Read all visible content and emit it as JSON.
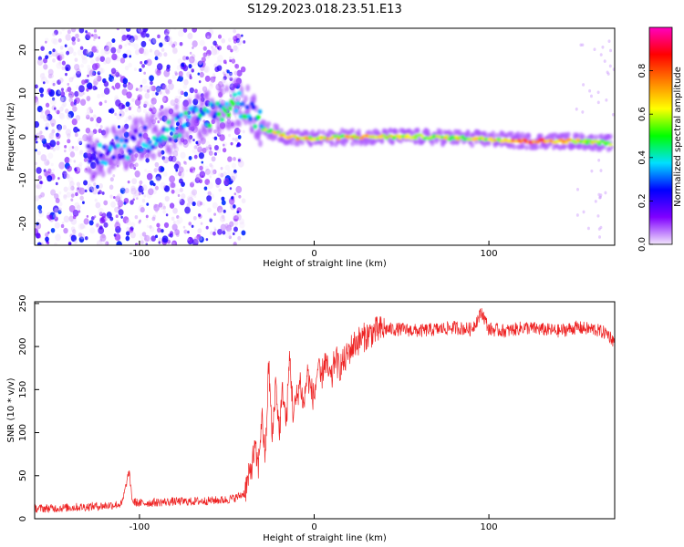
{
  "title": "S129.2023.018.23.51.E13",
  "chart_data": [
    {
      "type": "heatmap",
      "xlabel": "Height of straight line (km)",
      "ylabel": "Frequency (Hz)",
      "xlim": [
        -160,
        172
      ],
      "ylim": [
        -25,
        25
      ],
      "x_ticks": [
        {
          "value": -100,
          "label": "-100"
        },
        {
          "value": 0,
          "label": "0"
        },
        {
          "value": 100,
          "label": "100"
        }
      ],
      "y_ticks": [
        {
          "value": -20,
          "label": "-20"
        },
        {
          "value": -10,
          "label": "-10"
        },
        {
          "value": 0,
          "label": "0"
        },
        {
          "value": 10,
          "label": "10"
        },
        {
          "value": 20,
          "label": "20"
        }
      ],
      "colorbar": {
        "label": "Normalized spectral amplitude",
        "range": [
          0,
          1
        ],
        "ticks": [
          {
            "value": 0.0,
            "label": "0.0"
          },
          {
            "value": 0.2,
            "label": "0.2"
          },
          {
            "value": 0.4,
            "label": "0.4"
          },
          {
            "value": 0.6,
            "label": "0.6"
          },
          {
            "value": 0.8,
            "label": "0.8"
          }
        ],
        "colors": [
          "#f2e6fb",
          "#8000ff",
          "#0000ff",
          "#00e0ff",
          "#00ff00",
          "#ffff00",
          "#ff8000",
          "#ff0000",
          "#ff00c0"
        ]
      },
      "ridge": [
        {
          "x": -130,
          "y": -5,
          "a": 0.25
        },
        {
          "x": -115,
          "y": -3,
          "a": 0.3
        },
        {
          "x": -100,
          "y": -1,
          "a": 0.28
        },
        {
          "x": -85,
          "y": 1,
          "a": 0.3
        },
        {
          "x": -70,
          "y": 4,
          "a": 0.32
        },
        {
          "x": -55,
          "y": 6,
          "a": 0.38
        },
        {
          "x": -45,
          "y": 8,
          "a": 0.4
        },
        {
          "x": -35,
          "y": 6,
          "a": 0.3
        },
        {
          "x": -30,
          "y": 2,
          "a": 0.45
        },
        {
          "x": -15,
          "y": 0,
          "a": 0.75
        },
        {
          "x": 0,
          "y": -0.5,
          "a": 0.6
        },
        {
          "x": 20,
          "y": 0,
          "a": 0.65
        },
        {
          "x": 60,
          "y": 0,
          "a": 0.55
        },
        {
          "x": 100,
          "y": -0.5,
          "a": 0.6
        },
        {
          "x": 120,
          "y": -1,
          "a": 0.82
        },
        {
          "x": 150,
          "y": -1,
          "a": 0.65
        },
        {
          "x": 170,
          "y": -1.5,
          "a": 0.5
        }
      ]
    },
    {
      "type": "line",
      "xlabel": "Height of straight line (km)",
      "ylabel": "SNR (10 * v/v)",
      "xlim": [
        -160,
        172
      ],
      "ylim": [
        0,
        252
      ],
      "color": "#ee2222",
      "x_ticks": [
        {
          "value": -100,
          "label": "-100"
        },
        {
          "value": 0,
          "label": "0"
        },
        {
          "value": 100,
          "label": "100"
        }
      ],
      "y_ticks": [
        {
          "value": 0,
          "label": "0"
        },
        {
          "value": 50,
          "label": "50"
        },
        {
          "value": 100,
          "label": "100"
        },
        {
          "value": 150,
          "label": "150"
        },
        {
          "value": 200,
          "label": "200"
        },
        {
          "value": 250,
          "label": "250"
        }
      ],
      "series": [
        {
          "x": [
            -160,
            -150,
            -140,
            -130,
            -120,
            -110,
            -106,
            -104,
            -100,
            -90,
            -80,
            -70,
            -60,
            -50,
            -44,
            -40,
            -37,
            -34,
            -32,
            -30,
            -28,
            -26,
            -24,
            -22,
            -20,
            -18,
            -16,
            -14,
            -12,
            -10,
            -8,
            -6,
            -4,
            -2,
            0,
            2,
            4,
            6,
            8,
            10,
            12,
            14,
            16,
            18,
            20,
            24,
            28,
            32,
            36,
            40,
            50,
            60,
            70,
            80,
            90,
            96,
            100,
            110,
            120,
            130,
            140,
            150,
            160,
            168,
            172
          ],
          "y": [
            12,
            12,
            13,
            14,
            15,
            17,
            55,
            20,
            18,
            19,
            20,
            20,
            21,
            22,
            25,
            30,
            50,
            80,
            60,
            120,
            70,
            180,
            90,
            160,
            100,
            150,
            110,
            190,
            120,
            140,
            160,
            130,
            170,
            150,
            140,
            175,
            160,
            185,
            170,
            160,
            190,
            175,
            180,
            185,
            195,
            205,
            210,
            215,
            218,
            220,
            220,
            218,
            220,
            222,
            220,
            240,
            220,
            218,
            222,
            220,
            218,
            222,
            220,
            215,
            205
          ]
        }
      ]
    }
  ]
}
